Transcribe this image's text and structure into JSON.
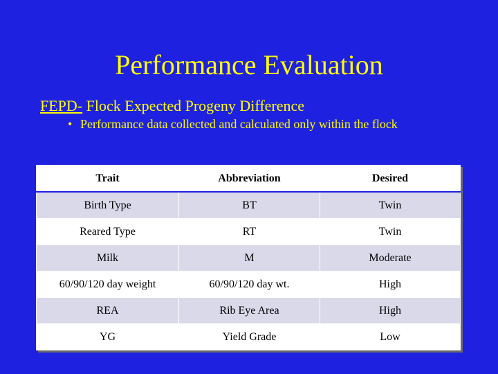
{
  "slide": {
    "title": "Performance Evaluation",
    "subtitle_acronym": "FEPD-",
    "subtitle_text": " Flock Expected Progeny Difference",
    "bullet_glyph": "•",
    "bullet_text": "Performance data collected and calculated only within the flock"
  },
  "table": {
    "headers": [
      "Trait",
      "Abbreviation",
      "Desired"
    ],
    "rows": [
      [
        "Birth Type",
        "BT",
        "Twin"
      ],
      [
        "Reared Type",
        "RT",
        "Twin"
      ],
      [
        "Milk",
        "M",
        "Moderate"
      ],
      [
        "60/90/120 day weight",
        "60/90/120 day wt.",
        "High"
      ],
      [
        "REA",
        "Rib Eye Area",
        "High"
      ],
      [
        "YG",
        "Yield Grade",
        "Low"
      ]
    ]
  },
  "colors": {
    "background": "#1e22e0",
    "text_accent": "#ffff00",
    "row_shaded": "#d9d9ea",
    "row_plain": "#ffffff"
  }
}
